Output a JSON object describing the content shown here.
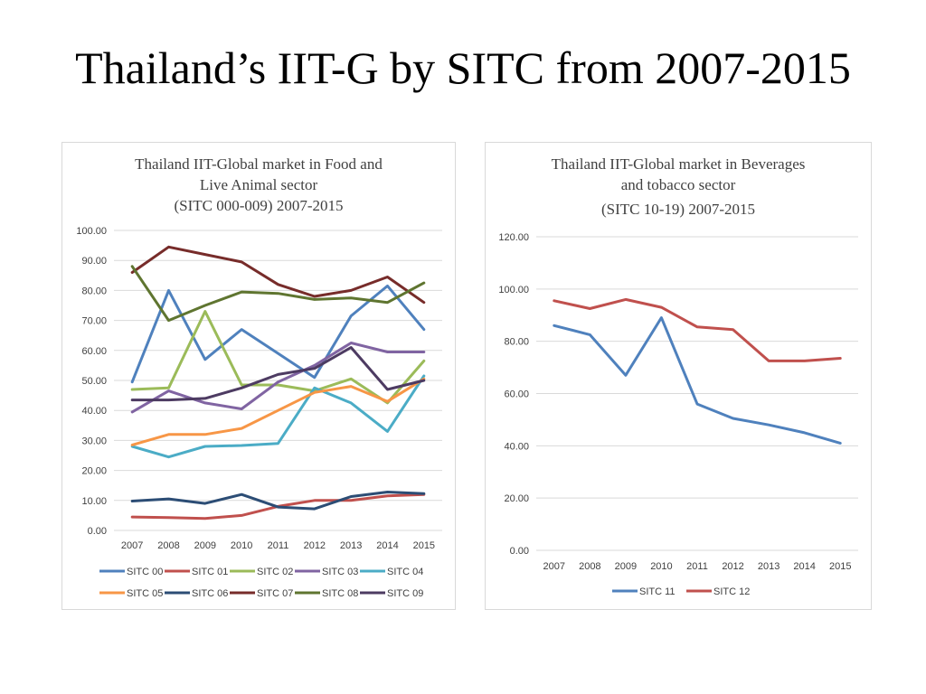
{
  "slide": {
    "title": "Thailand’s IIT-G by SITC from 2007-2015"
  },
  "chart_data": [
    {
      "type": "line",
      "title_lines": [
        "Thailand IIT-Global market in Food and",
        "Live Animal sector",
        "(SITC 000-009) 2007-2015"
      ],
      "categories": [
        "2007",
        "2008",
        "2009",
        "2010",
        "2011",
        "2012",
        "2013",
        "2014",
        "2015"
      ],
      "yticks": [
        "0.00",
        "10.00",
        "20.00",
        "30.00",
        "40.00",
        "50.00",
        "60.00",
        "70.00",
        "80.00",
        "90.00",
        "100.00"
      ],
      "ylim": [
        0,
        100
      ],
      "grid": true,
      "legend_position": "bottom",
      "series": [
        {
          "name": "SITC 00",
          "color": "#4f81bd",
          "values": [
            49.5,
            80.0,
            57.0,
            67.0,
            59.0,
            51.0,
            71.5,
            81.5,
            67.0
          ]
        },
        {
          "name": "SITC 01",
          "color": "#c0504d",
          "values": [
            4.5,
            4.3,
            4.0,
            5.0,
            8.0,
            10.0,
            10.0,
            11.5,
            12.0
          ]
        },
        {
          "name": "SITC 02",
          "color": "#9bbb59",
          "values": [
            47.0,
            47.5,
            73.0,
            48.5,
            48.5,
            46.5,
            50.5,
            42.5,
            56.5
          ]
        },
        {
          "name": "SITC 03",
          "color": "#8064a2",
          "values": [
            39.5,
            46.5,
            42.5,
            40.5,
            49.5,
            55.0,
            62.5,
            59.5,
            59.5
          ]
        },
        {
          "name": "SITC 04",
          "color": "#4bacc6",
          "values": [
            28.0,
            24.5,
            28.0,
            28.3,
            29.0,
            47.5,
            42.5,
            33.0,
            51.5
          ]
        },
        {
          "name": "SITC 05",
          "color": "#f79646",
          "values": [
            28.5,
            32.0,
            32.0,
            34.0,
            40.0,
            46.0,
            48.0,
            43.0,
            50.5
          ]
        },
        {
          "name": "SITC 06",
          "color": "#2c4d75",
          "values": [
            9.8,
            10.5,
            9.0,
            12.0,
            7.8,
            7.2,
            11.3,
            12.8,
            12.3
          ]
        },
        {
          "name": "SITC 07",
          "color": "#772c2a",
          "values": [
            86.0,
            94.5,
            92.0,
            89.5,
            82.0,
            78.0,
            80.0,
            84.5,
            76.0
          ]
        },
        {
          "name": "SITC 08",
          "color": "#5f7530",
          "values": [
            88.0,
            70.0,
            75.0,
            79.5,
            79.0,
            77.0,
            77.5,
            76.0,
            82.5
          ]
        },
        {
          "name": "SITC 09",
          "color": "#4d3b62",
          "values": [
            43.5,
            43.5,
            44.0,
            47.5,
            52.0,
            54.0,
            61.0,
            47.0,
            50.0
          ]
        }
      ]
    },
    {
      "type": "line",
      "title_lines": [
        "Thailand IIT-Global market in Beverages",
        "and tobacco sector",
        "(SITC 10-19) 2007-2015"
      ],
      "categories": [
        "2007",
        "2008",
        "2009",
        "2010",
        "2011",
        "2012",
        "2013",
        "2014",
        "2015"
      ],
      "yticks": [
        "0.00",
        "20.00",
        "40.00",
        "60.00",
        "80.00",
        "100.00",
        "120.00"
      ],
      "ylim": [
        0,
        120
      ],
      "grid": true,
      "legend_position": "bottom",
      "series": [
        {
          "name": "SITC 11",
          "color": "#4f81bd",
          "values": [
            86.0,
            82.5,
            67.0,
            89.0,
            56.0,
            50.5,
            48.0,
            45.0,
            41.0
          ]
        },
        {
          "name": "SITC 12",
          "color": "#c0504d",
          "values": [
            95.5,
            92.5,
            96.0,
            93.0,
            85.5,
            84.5,
            72.5,
            72.5,
            73.5
          ]
        }
      ]
    }
  ]
}
